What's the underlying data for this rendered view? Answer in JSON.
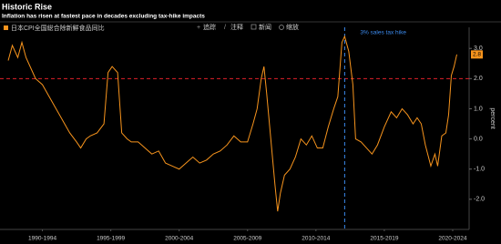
{
  "chart_data": {
    "type": "line",
    "title": "Historic Rise",
    "subtitle": "Inflation has risen at fastest pace in decades excluding tax-hike impacts",
    "y_axis_label": "percent",
    "series": [
      {
        "name": "日本CPI全国総合除新鮮食品同比",
        "color": "#f7941d",
        "x": [
          1990.0,
          1990.3,
          1990.7,
          1991.0,
          1991.3,
          1991.7,
          1992.0,
          1992.5,
          1993.0,
          1993.5,
          1994.0,
          1994.5,
          1995.0,
          1995.3,
          1995.7,
          1996.0,
          1996.5,
          1997.0,
          1997.3,
          1997.6,
          1998.0,
          1998.3,
          1998.7,
          1999.0,
          1999.5,
          2000.0,
          2000.5,
          2001.0,
          2001.5,
          2002.0,
          2002.5,
          2003.0,
          2003.5,
          2004.0,
          2004.5,
          2005.0,
          2005.5,
          2006.0,
          2006.5,
          2007.0,
          2007.5,
          2007.9,
          2008.2,
          2008.5,
          2008.7,
          2008.9,
          2009.2,
          2009.5,
          2009.7,
          2009.9,
          2010.2,
          2010.6,
          2011.0,
          2011.4,
          2011.8,
          2012.2,
          2012.6,
          2013.0,
          2013.4,
          2013.8,
          2014.1,
          2014.4,
          2014.6,
          2014.9,
          2015.2,
          2015.4,
          2015.8,
          2016.2,
          2016.6,
          2017.0,
          2017.5,
          2018.0,
          2018.4,
          2018.8,
          2019.2,
          2019.6,
          2019.9,
          2020.2,
          2020.5,
          2020.9,
          2021.2,
          2021.4,
          2021.7,
          2022.0,
          2022.2,
          2022.4,
          2022.6,
          2022.8
        ],
        "values": [
          2.6,
          3.1,
          2.7,
          3.2,
          2.7,
          2.3,
          2.0,
          1.8,
          1.4,
          1.0,
          0.6,
          0.2,
          -0.1,
          -0.3,
          0.0,
          0.1,
          0.2,
          0.5,
          2.2,
          2.4,
          2.2,
          0.2,
          0.0,
          -0.1,
          -0.1,
          -0.3,
          -0.5,
          -0.4,
          -0.8,
          -0.9,
          -1.0,
          -0.8,
          -0.6,
          -0.8,
          -0.7,
          -0.5,
          -0.4,
          -0.2,
          0.1,
          -0.1,
          -0.1,
          0.5,
          1.0,
          2.0,
          2.4,
          1.5,
          0.0,
          -1.5,
          -2.4,
          -1.8,
          -1.2,
          -1.0,
          -0.6,
          0.0,
          -0.2,
          0.1,
          -0.3,
          -0.3,
          0.4,
          1.0,
          1.4,
          3.2,
          3.4,
          2.9,
          1.8,
          0.0,
          -0.1,
          -0.3,
          -0.5,
          -0.2,
          0.4,
          0.9,
          0.7,
          1.0,
          0.8,
          0.5,
          0.7,
          0.5,
          -0.2,
          -0.9,
          -0.5,
          -0.9,
          0.1,
          0.2,
          0.8,
          2.1,
          2.4,
          2.8
        ]
      }
    ],
    "xlim": [
      1989.4,
      2023.7
    ],
    "xticks": [
      {
        "value": 1992.5,
        "label": "1990-1994"
      },
      {
        "value": 1997.5,
        "label": "1995-1999"
      },
      {
        "value": 2002.5,
        "label": "2000-2004"
      },
      {
        "value": 2007.5,
        "label": "2005-2009"
      },
      {
        "value": 2012.5,
        "label": "2010-2014"
      },
      {
        "value": 2017.5,
        "label": "2015-2019"
      },
      {
        "value": 2022.5,
        "label": "2020-2024"
      }
    ],
    "ylim": [
      -3.0,
      3.7
    ],
    "yticks": [
      {
        "value": -2,
        "label": "-2.0"
      },
      {
        "value": -1,
        "label": "-1.0"
      },
      {
        "value": 0,
        "label": "0.0"
      },
      {
        "value": 1,
        "label": "1.0"
      },
      {
        "value": 2,
        "label": "2.0"
      },
      {
        "value": 3,
        "label": "3.0"
      }
    ],
    "reference_line": {
      "value": 2,
      "color": "#e0202a"
    },
    "annotation": {
      "text": "3% sales tax hike",
      "x": 2014.6,
      "color": "#3c8cf0"
    },
    "grid": false
  },
  "toolbar": [
    "追踪",
    "注释",
    "新闻",
    "缩放"
  ]
}
